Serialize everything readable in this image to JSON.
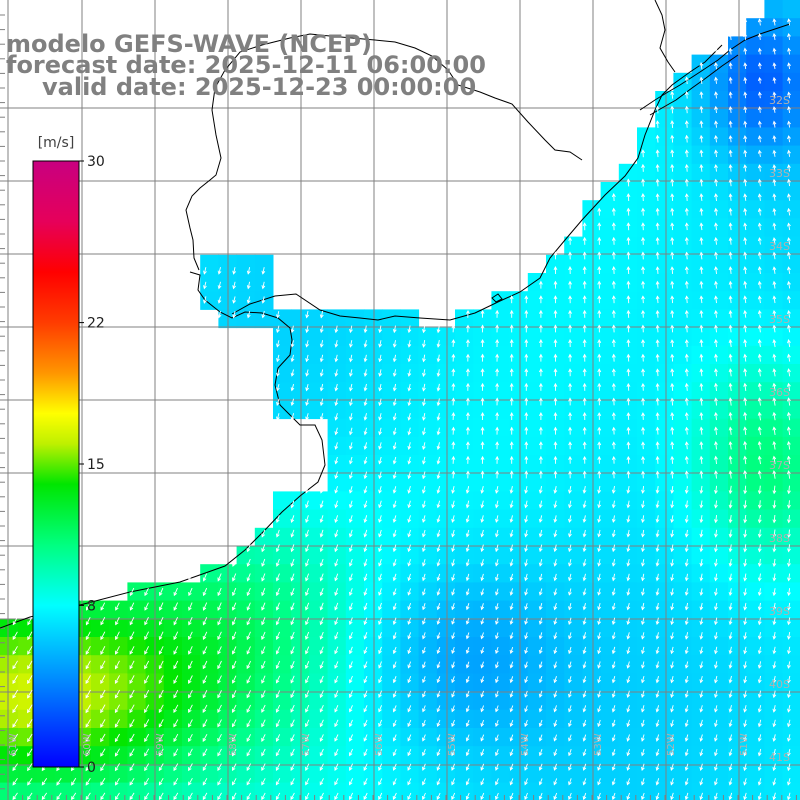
{
  "title": {
    "line1": "modelo GEFS-WAVE (NCEP)",
    "line2": "forecast date: 2025-12-11 06:00:00",
    "line3": "valid date: 2025-12-23 00:00:00"
  },
  "colorbar": {
    "unit": "[m/s]",
    "ticks": [
      "30",
      "22",
      "15",
      "8",
      "0"
    ],
    "tick_values": [
      30,
      22,
      15,
      8,
      0
    ],
    "max": 30
  },
  "lon_labels": [
    "61W",
    "60W",
    "59W",
    "58W",
    "57W",
    "56W",
    "55W",
    "54W",
    "53W",
    "52W",
    "51W"
  ],
  "lat_labels": [
    "32S",
    "33S",
    "34S",
    "35S",
    "36S",
    "37S",
    "38S",
    "39S",
    "40S",
    "41S"
  ],
  "colors": {
    "land": "#ffffff",
    "coast": "#000000",
    "grid": "#808080",
    "arrows": "#ffffff",
    "title": "#808080"
  }
}
